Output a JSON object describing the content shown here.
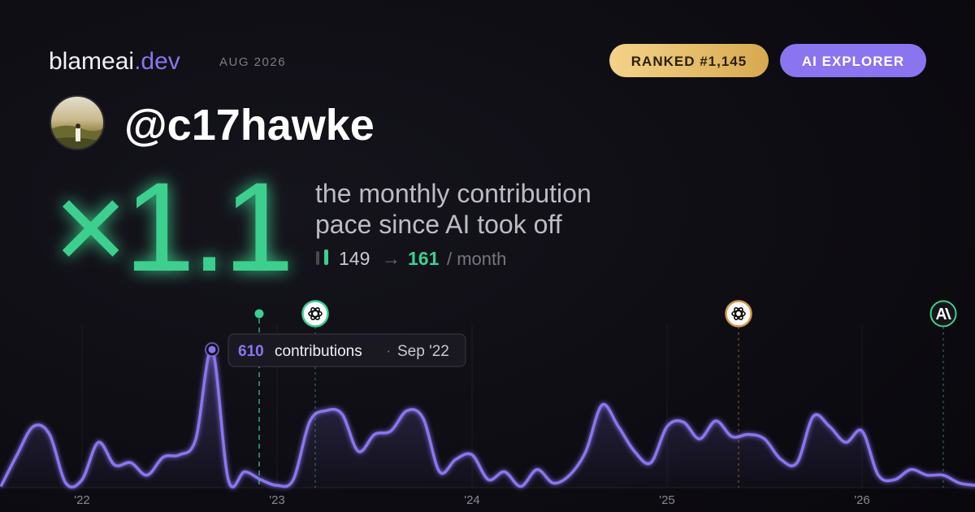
{
  "header": {
    "brand": "blameai",
    "brand_suffix": ".dev",
    "period": "AUG 2026",
    "rank_badge": "RANKED #1,145",
    "tier_badge": "AI EXPLORER",
    "handle": "@c17hawke"
  },
  "headline": {
    "multiplier": "×1.1",
    "caption_line1": "the monthly contribution",
    "caption_line2": "pace since AI took off",
    "before": 149,
    "arrow": "→",
    "after": 161,
    "unit": "/ month"
  },
  "chart_data": {
    "type": "line",
    "categories": [
      null,
      null,
      null,
      null,
      null,
      "'22",
      null,
      null,
      null,
      null,
      null,
      null,
      null,
      null,
      null,
      null,
      null,
      "'23",
      null,
      null,
      null,
      null,
      null,
      null,
      null,
      null,
      null,
      null,
      null,
      "'24",
      null,
      null,
      null,
      null,
      null,
      null,
      null,
      null,
      null,
      null,
      null,
      "'25",
      null,
      null,
      null,
      null,
      null,
      null,
      null,
      null,
      null,
      null,
      null,
      "'26",
      null,
      null,
      null,
      null,
      null,
      null,
      null
    ],
    "values": [
      5,
      145,
      270,
      235,
      20,
      35,
      200,
      100,
      110,
      55,
      135,
      145,
      215,
      610,
      35,
      70,
      35,
      10,
      35,
      290,
      340,
      325,
      160,
      235,
      250,
      340,
      305,
      70,
      125,
      145,
      35,
      70,
      5,
      80,
      20,
      55,
      160,
      365,
      270,
      160,
      110,
      270,
      290,
      215,
      295,
      225,
      235,
      215,
      125,
      110,
      315,
      270,
      200,
      250,
      55,
      35,
      80,
      55,
      55,
      20,
      10
    ],
    "color": "#8b74f0",
    "ylim": [
      0,
      700
    ],
    "tooltip": {
      "label": "contributions",
      "separator": "·",
      "date": "Sep '22"
    }
  }
}
